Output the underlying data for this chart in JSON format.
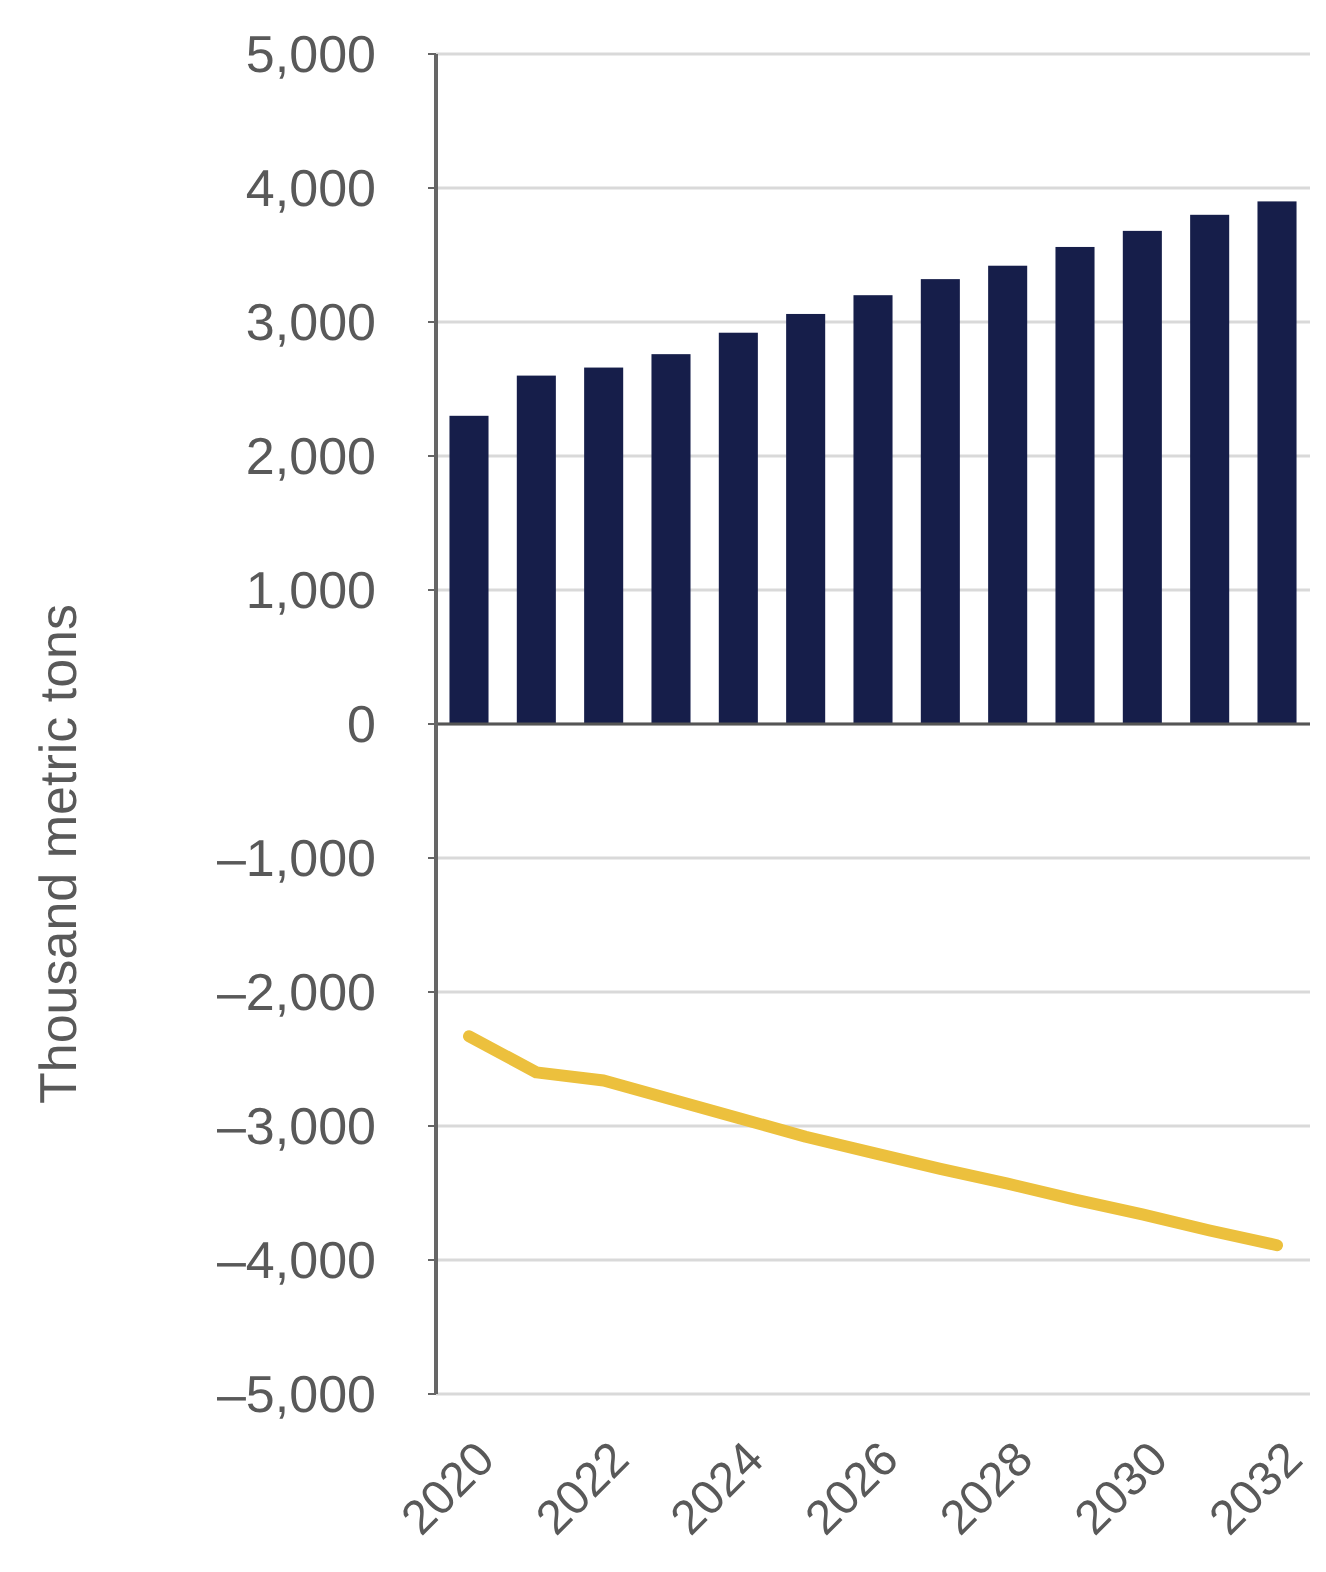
{
  "chart_data": {
    "type": "bar",
    "ylabel": "Thousand metric tons",
    "categories": [
      "2020",
      null,
      "2022",
      null,
      "2024",
      null,
      "2026",
      null,
      "2028",
      null,
      "2030",
      null,
      "2032"
    ],
    "series": [
      {
        "color": "#161e4a",
        "values": [
          2300,
          2600,
          2660,
          2760,
          2920,
          3060,
          3200,
          3320,
          3420,
          3560,
          3680,
          3800,
          3900
        ]
      },
      {
        "type": "line",
        "color": "#ecc03d",
        "values": [
          -2330,
          -2600,
          -2660,
          -2800,
          -2940,
          -3080,
          -3200,
          -3320,
          -3430,
          -3550,
          -3660,
          -3780,
          -3890
        ]
      }
    ],
    "ylim": [
      -5000,
      5000
    ],
    "yticks": [
      {
        "value": -5000,
        "label": "–5,000"
      },
      {
        "value": -4000,
        "label": "–4,000"
      },
      {
        "value": -3000,
        "label": "–3,000"
      },
      {
        "value": -2000,
        "label": "–2,000"
      },
      {
        "value": -1000,
        "label": "–1,000"
      },
      0,
      {
        "value": 1000,
        "label": "1,000"
      },
      {
        "value": 2000,
        "label": "2,000"
      },
      {
        "value": 3000,
        "label": "3,000"
      },
      {
        "value": 4000,
        "label": "4,000"
      },
      {
        "value": 5000,
        "label": "5,000"
      }
    ],
    "grid": "y"
  }
}
